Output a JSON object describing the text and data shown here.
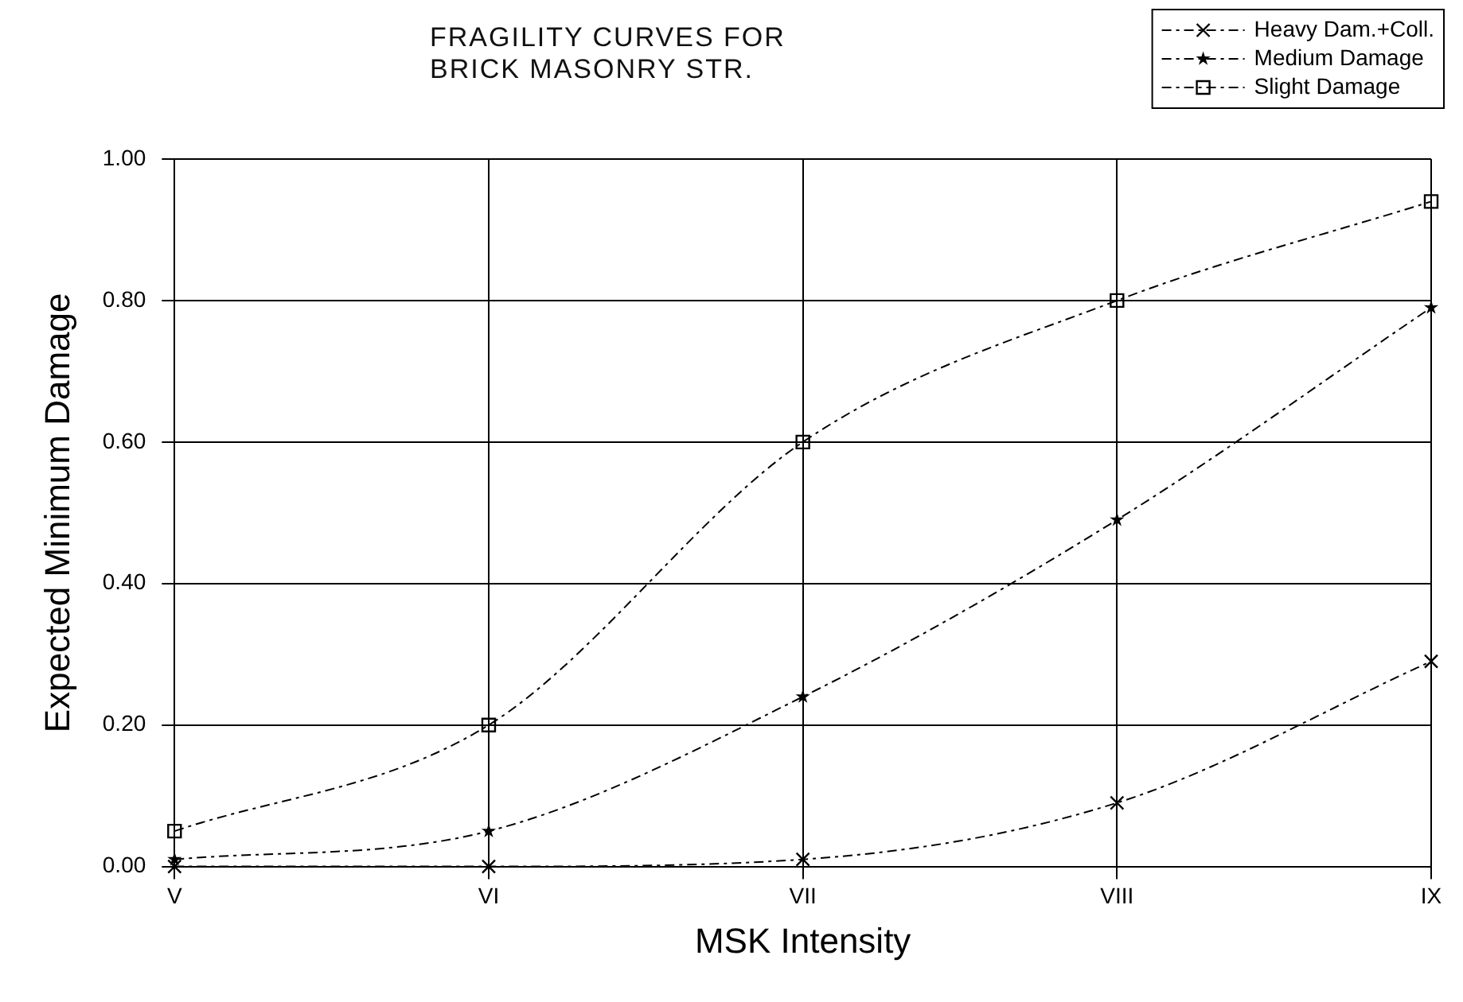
{
  "chart_data": {
    "type": "line",
    "title": "FRAGILITY CURVES FOR\nBRICK MASONRY STR.",
    "xlabel": "MSK Intensity",
    "ylabel": "Expected Minimum Damage",
    "categories": [
      "V",
      "VI",
      "VII",
      "VIII",
      "IX"
    ],
    "series": [
      {
        "name": "Heavy Dam.+Coll.",
        "color": "#000000",
        "marker": "cross",
        "values": [
          0.0,
          0.0,
          0.01,
          0.09,
          0.29
        ]
      },
      {
        "name": "Medium Damage",
        "color": "#000000",
        "marker": "star",
        "values": [
          0.01,
          0.05,
          0.24,
          0.49,
          0.79
        ]
      },
      {
        "name": "Slight Damage",
        "color": "#000000",
        "marker": "square",
        "values": [
          0.05,
          0.2,
          0.6,
          0.8,
          0.94
        ]
      }
    ],
    "ylim": [
      0,
      1
    ],
    "yticks": [
      {
        "value": 0,
        "label": "0.00"
      },
      {
        "value": 0.2,
        "label": "0.20"
      },
      {
        "value": 0.4,
        "label": "0.40"
      },
      {
        "value": 0.6,
        "label": "0.60"
      },
      {
        "value": 0.8,
        "label": "0.80"
      },
      {
        "value": 1,
        "label": "1.00"
      }
    ],
    "grid": true,
    "legend": "top right",
    "line_style": "dashed"
  }
}
